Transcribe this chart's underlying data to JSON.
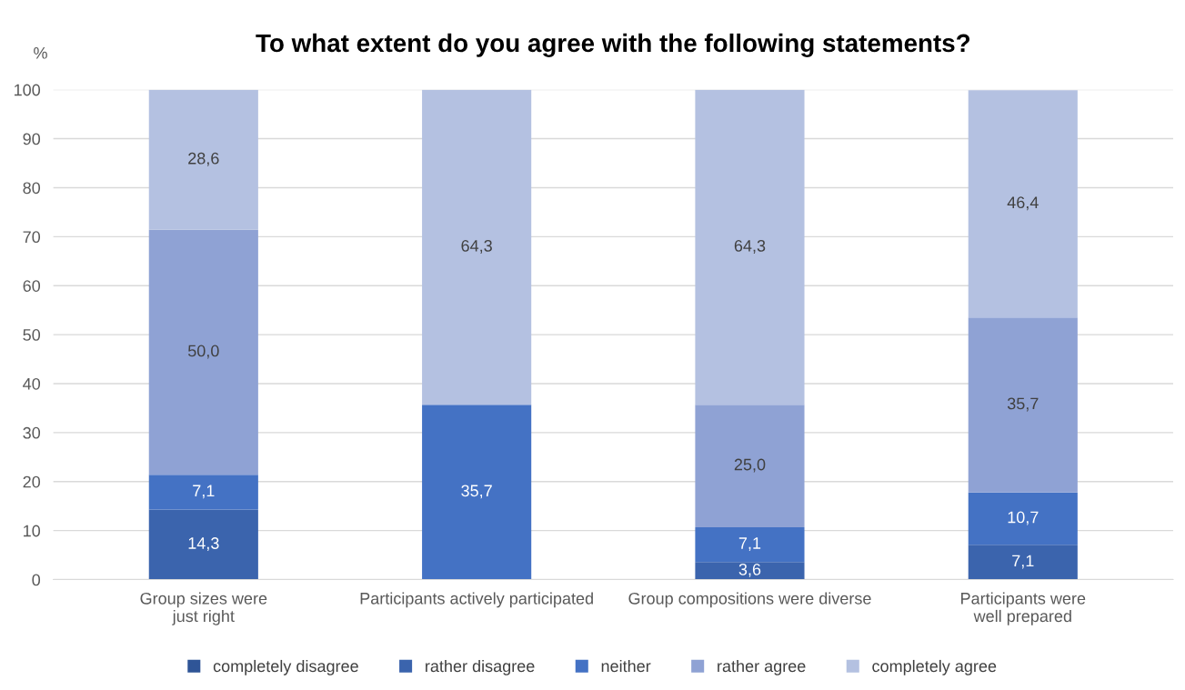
{
  "chart_data": {
    "type": "bar",
    "stacked": true,
    "title": "To what extent do you agree with the following statements?",
    "ylabel": "%",
    "categories": [
      "Group sizes were\njust right",
      "Participants actively participated",
      "Group compositions were diverse",
      "Participants were\nwell prepared"
    ],
    "series": [
      {
        "name": "completely disagree",
        "color": "#2f5597",
        "values": [
          null,
          null,
          null,
          null
        ],
        "value_labels": [
          null,
          null,
          null,
          null
        ]
      },
      {
        "name": "rather disagree",
        "color": "#3b64ad",
        "values": [
          14.3,
          null,
          3.6,
          7.1
        ],
        "value_labels": [
          "14,3",
          null,
          "3,6",
          "7,1"
        ]
      },
      {
        "name": "neither",
        "color": "#4472c4",
        "values": [
          7.1,
          35.7,
          7.1,
          10.7
        ],
        "value_labels": [
          "7,1",
          "35,7",
          "7,1",
          "10,7"
        ]
      },
      {
        "name": "rather agree",
        "color": "#8fa2d4",
        "values": [
          50.0,
          null,
          25.0,
          35.7
        ],
        "value_labels": [
          "50,0",
          null,
          "25,0",
          "35,7"
        ]
      },
      {
        "name": "completely agree",
        "color": "#b4c1e1",
        "values": [
          28.6,
          64.3,
          64.3,
          46.4
        ],
        "value_labels": [
          "28,6",
          "64,3",
          "64,3",
          "46,4"
        ]
      }
    ],
    "ylim": [
      0,
      100
    ],
    "yticks": [
      0,
      10,
      20,
      30,
      40,
      50,
      60,
      70,
      80,
      90,
      100
    ],
    "grid": "y",
    "legend": "bottom"
  }
}
